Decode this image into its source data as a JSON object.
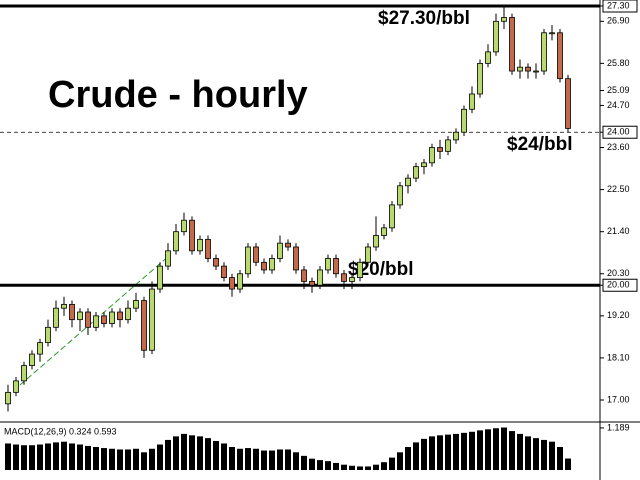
{
  "chart_data": {
    "type": "candlestick",
    "title": "Crude - hourly",
    "annotations": [
      "$27.30/bbl",
      "$24/bbl",
      "$20/bbl"
    ],
    "ylim": [
      17.0,
      27.3
    ],
    "yticks": [
      {
        "value": 27.3,
        "label": "27.30"
      },
      {
        "value": 26.9,
        "label": "26.90"
      },
      {
        "value": 25.8,
        "label": "25.80"
      },
      25.09,
      {
        "value": 24.7,
        "label": "24.70"
      },
      {
        "value": 24.0,
        "label": "24.00"
      },
      {
        "value": 23.6,
        "label": "23.60"
      },
      {
        "value": 22.5,
        "label": "22.50"
      },
      {
        "value": 21.4,
        "label": "21.40"
      },
      {
        "value": 20.3,
        "label": "20.30"
      },
      {
        "value": 20.0,
        "label": "20.00"
      },
      {
        "value": 19.2,
        "label": "19.20"
      },
      {
        "value": 18.1,
        "label": "18.10"
      },
      {
        "value": 17.0,
        "label": "17.00"
      }
    ],
    "hlines": [
      {
        "value": 27.3,
        "style": "solid"
      },
      {
        "value": 24.0,
        "style": "dashed"
      },
      {
        "value": 20.0,
        "style": "solid"
      }
    ],
    "up_color": "#b8d870",
    "down_color": "#c46a4a",
    "ohlc": [
      [
        16.9,
        17.4,
        16.7,
        17.2
      ],
      [
        17.2,
        17.6,
        17.1,
        17.5
      ],
      [
        17.5,
        18.0,
        17.4,
        17.9
      ],
      [
        17.9,
        18.3,
        17.8,
        18.2
      ],
      [
        18.2,
        18.6,
        18.0,
        18.5
      ],
      [
        18.5,
        19.1,
        18.4,
        18.9
      ],
      [
        18.9,
        19.6,
        18.8,
        19.4
      ],
      [
        19.4,
        19.7,
        19.2,
        19.5
      ],
      [
        19.5,
        19.6,
        18.9,
        19.1
      ],
      [
        19.1,
        19.4,
        18.8,
        19.3
      ],
      [
        19.3,
        19.4,
        18.7,
        18.9
      ],
      [
        18.9,
        19.3,
        18.8,
        19.2
      ],
      [
        19.2,
        19.3,
        18.9,
        19.0
      ],
      [
        19.0,
        19.4,
        18.9,
        19.3
      ],
      [
        19.3,
        19.4,
        18.9,
        19.1
      ],
      [
        19.1,
        19.6,
        19.0,
        19.4
      ],
      [
        19.4,
        19.8,
        19.3,
        19.6
      ],
      [
        19.6,
        19.7,
        18.1,
        18.3
      ],
      [
        18.3,
        20.1,
        18.2,
        19.9
      ],
      [
        19.9,
        20.6,
        19.8,
        20.5
      ],
      [
        20.5,
        21.1,
        20.4,
        20.9
      ],
      [
        20.9,
        21.6,
        20.8,
        21.4
      ],
      [
        21.4,
        21.9,
        21.3,
        21.7
      ],
      [
        21.7,
        21.8,
        20.8,
        20.9
      ],
      [
        20.9,
        21.3,
        20.8,
        21.2
      ],
      [
        21.2,
        21.3,
        20.6,
        20.7
      ],
      [
        20.7,
        20.8,
        20.4,
        20.5
      ],
      [
        20.5,
        20.6,
        20.1,
        20.2
      ],
      [
        20.2,
        20.3,
        19.7,
        19.9
      ],
      [
        19.9,
        20.4,
        19.8,
        20.3
      ],
      [
        20.3,
        21.1,
        20.2,
        21.0
      ],
      [
        21.0,
        21.1,
        20.5,
        20.6
      ],
      [
        20.6,
        20.7,
        20.3,
        20.4
      ],
      [
        20.4,
        20.8,
        20.3,
        20.7
      ],
      [
        20.7,
        21.3,
        20.6,
        21.1
      ],
      [
        21.1,
        21.2,
        20.9,
        21.0
      ],
      [
        21.0,
        21.1,
        20.3,
        20.4
      ],
      [
        20.4,
        20.5,
        19.9,
        20.1
      ],
      [
        20.1,
        20.2,
        19.8,
        20.0
      ],
      [
        20.0,
        20.5,
        19.9,
        20.4
      ],
      [
        20.4,
        20.8,
        20.3,
        20.7
      ],
      [
        20.7,
        20.8,
        20.2,
        20.3
      ],
      [
        20.3,
        20.4,
        19.9,
        20.1
      ],
      [
        20.1,
        20.3,
        19.9,
        20.2
      ],
      [
        20.2,
        20.7,
        20.1,
        20.6
      ],
      [
        20.6,
        21.1,
        20.5,
        21.0
      ],
      [
        21.0,
        21.8,
        20.9,
        21.3
      ],
      [
        21.3,
        21.6,
        21.2,
        21.5
      ],
      [
        21.5,
        22.2,
        21.4,
        22.1
      ],
      [
        22.1,
        22.7,
        22.0,
        22.6
      ],
      [
        22.6,
        22.9,
        22.4,
        22.8
      ],
      [
        22.8,
        23.2,
        22.7,
        23.1
      ],
      [
        23.1,
        23.3,
        22.9,
        23.2
      ],
      [
        23.2,
        23.7,
        23.1,
        23.6
      ],
      [
        23.6,
        23.8,
        23.3,
        23.5
      ],
      [
        23.5,
        23.9,
        23.4,
        23.8
      ],
      [
        23.8,
        24.1,
        23.7,
        24.0
      ],
      [
        24.0,
        24.7,
        23.9,
        24.6
      ],
      [
        24.6,
        25.2,
        24.5,
        25.0
      ],
      [
        25.0,
        25.9,
        24.9,
        25.8
      ],
      [
        25.8,
        26.3,
        25.7,
        26.1
      ],
      [
        26.1,
        27.1,
        26.0,
        26.9
      ],
      [
        26.9,
        27.3,
        26.7,
        27.0
      ],
      [
        27.0,
        27.1,
        25.5,
        25.6
      ],
      [
        25.6,
        25.9,
        25.4,
        25.7
      ],
      [
        25.7,
        25.8,
        25.4,
        25.6
      ],
      [
        25.6,
        25.8,
        25.4,
        25.6
      ],
      [
        25.6,
        26.7,
        25.5,
        26.6
      ],
      [
        26.6,
        26.8,
        26.4,
        26.6
      ],
      [
        26.6,
        26.7,
        25.3,
        25.4
      ],
      [
        25.4,
        25.5,
        24.0,
        24.1
      ]
    ],
    "macd": {
      "label": "MACD(12,26,9) 0.324 0.593",
      "ylim": [
        0,
        1.3
      ],
      "yticks": [
        1.189
      ],
      "color": "#000000",
      "values": [
        0.75,
        0.72,
        0.7,
        0.7,
        0.72,
        0.75,
        0.78,
        0.8,
        0.75,
        0.72,
        0.68,
        0.65,
        0.62,
        0.6,
        0.58,
        0.58,
        0.6,
        0.5,
        0.6,
        0.72,
        0.85,
        0.95,
        1.02,
        0.98,
        0.95,
        0.9,
        0.82,
        0.75,
        0.65,
        0.6,
        0.62,
        0.6,
        0.55,
        0.55,
        0.58,
        0.58,
        0.5,
        0.4,
        0.32,
        0.28,
        0.25,
        0.2,
        0.15,
        0.12,
        0.1,
        0.1,
        0.15,
        0.22,
        0.35,
        0.5,
        0.65,
        0.78,
        0.88,
        0.95,
        0.98,
        1.0,
        1.02,
        1.05,
        1.08,
        1.12,
        1.15,
        1.18,
        1.2,
        1.1,
        1.02,
        0.95,
        0.9,
        0.85,
        0.8,
        0.65,
        0.324
      ]
    }
  }
}
